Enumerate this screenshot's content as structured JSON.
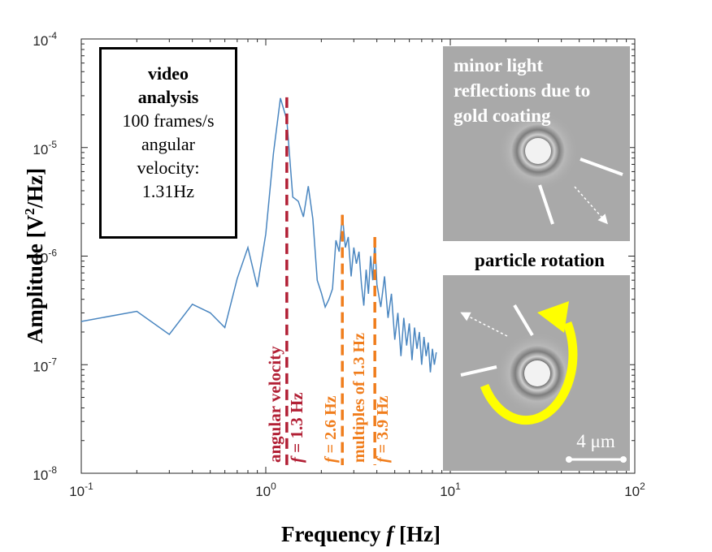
{
  "chart_data": {
    "type": "line",
    "xscale": "log",
    "yscale": "log",
    "xlim": [
      0.1,
      100
    ],
    "ylim": [
      1e-08,
      0.0001
    ],
    "xlabel": "Frequency f [Hz]",
    "ylabel": "Amplitude [V²/Hz]",
    "x_ticks": [
      {
        "base": "10",
        "exp": "-1"
      },
      {
        "base": "10",
        "exp": "0"
      },
      {
        "base": "10",
        "exp": "1"
      },
      {
        "base": "10",
        "exp": "2"
      }
    ],
    "y_ticks": [
      {
        "base": "10",
        "exp": "-8"
      },
      {
        "base": "10",
        "exp": "-7"
      },
      {
        "base": "10",
        "exp": "-6"
      },
      {
        "base": "10",
        "exp": "-5"
      },
      {
        "base": "10",
        "exp": "-4"
      }
    ],
    "series": [
      {
        "color": "#4a86c0",
        "x": [
          0.1,
          0.2,
          0.3,
          0.4,
          0.5,
          0.6,
          0.7,
          0.8,
          0.9,
          1.0,
          1.1,
          1.2,
          1.3,
          1.4,
          1.5,
          1.6,
          1.7,
          1.8,
          1.9,
          2.0,
          2.1,
          2.2,
          2.3,
          2.4,
          2.5,
          2.6,
          2.7,
          2.8,
          2.9,
          3.0,
          3.1,
          3.2,
          3.3,
          3.4,
          3.5,
          3.6,
          3.7,
          3.8,
          3.9,
          4.0,
          4.2,
          4.4,
          4.6,
          4.8,
          5.0,
          5.2,
          5.4,
          5.6,
          5.8,
          6.0,
          6.2,
          6.4,
          6.6,
          6.8,
          7.0,
          7.2,
          7.4,
          7.6,
          7.8,
          8.0,
          8.2,
          8.4
        ],
        "y": [
          2.5e-07,
          3.1e-07,
          1.9e-07,
          3.6e-07,
          3e-07,
          2.2e-07,
          6.2e-07,
          1.2e-06,
          5.2e-07,
          1.6e-06,
          8.8e-06,
          2.85e-05,
          1.8e-05,
          3.5e-06,
          3.2e-06,
          2.3e-06,
          4.4e-06,
          2.2e-06,
          6e-07,
          4.6e-07,
          3.4e-07,
          4e-07,
          5e-07,
          1.4e-06,
          1.1e-06,
          2.4e-06,
          1.2e-06,
          1.5e-06,
          6.5e-07,
          1.2e-06,
          8.5e-07,
          1.1e-06,
          5.5e-07,
          3.5e-07,
          7.5e-07,
          4.5e-07,
          1e-06,
          6e-07,
          1.4e-06,
          5.5e-07,
          3.4e-07,
          6.5e-07,
          2.7e-07,
          4.5e-07,
          1.7e-07,
          3e-07,
          1.2e-07,
          2.7e-07,
          1.5e-07,
          2.4e-07,
          1.1e-07,
          2.2e-07,
          1.4e-07,
          2e-07,
          1e-07,
          1.8e-07,
          1.2e-07,
          1.6e-07,
          8.5e-08,
          1.4e-07,
          1e-07,
          1.3e-07
        ]
      }
    ],
    "markers": [
      {
        "x": 1.3,
        "y_top": 2.9e-05,
        "color": "#b22035",
        "labels": [
          "angular velocity",
          "f = 1.3 Hz"
        ]
      },
      {
        "x": 2.6,
        "y_top": 2.4e-06,
        "color": "#f07d1c",
        "labels": [
          "f = 2.6 Hz"
        ]
      },
      {
        "x": 3.9,
        "y_top": 1.5e-06,
        "color": "#f07d1c",
        "labels": [
          "f = 3.9 Hz"
        ]
      }
    ],
    "orange_group_label": "multiples of 1.3 Hz"
  },
  "infobox": {
    "line1": "video",
    "line2": "analysis",
    "line3": "100 frames/s",
    "line4": "angular",
    "line5": "velocity:",
    "line6": "1.31Hz"
  },
  "images": {
    "top_caption": "minor light reflections due to gold coating",
    "top_caption_lines": [
      "minor light",
      "reflections due to",
      "gold coating"
    ],
    "middle_caption": "particle rotation",
    "scalebar_label": "4 μm"
  }
}
